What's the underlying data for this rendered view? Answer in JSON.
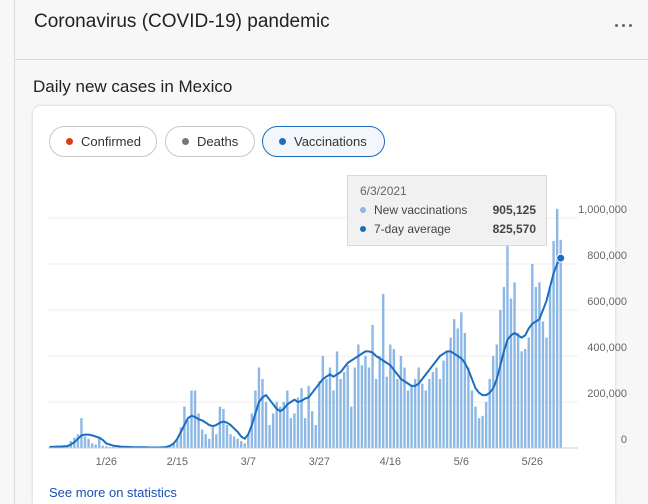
{
  "header": {
    "title": "Coronavirus (COVID-19) pandemic"
  },
  "card": {
    "title": "Daily new cases in Mexico",
    "chips": [
      "Confirmed",
      "Deaths",
      "Vaccinations"
    ],
    "link": "See more on statistics"
  },
  "chart_data": {
    "type": "bar",
    "categories": [
      null,
      null,
      null,
      null,
      null,
      null,
      null,
      null,
      null,
      null,
      null,
      null,
      null,
      null,
      null,
      null,
      "1/26",
      null,
      null,
      null,
      null,
      null,
      null,
      null,
      null,
      null,
      null,
      null,
      null,
      null,
      null,
      null,
      null,
      null,
      null,
      null,
      "2/15",
      null,
      null,
      null,
      null,
      null,
      null,
      null,
      null,
      null,
      null,
      null,
      null,
      null,
      null,
      null,
      null,
      null,
      null,
      null,
      "3/7",
      null,
      null,
      null,
      null,
      null,
      null,
      null,
      null,
      null,
      null,
      null,
      null,
      null,
      null,
      null,
      null,
      null,
      null,
      null,
      "3/27",
      null,
      null,
      null,
      null,
      null,
      null,
      null,
      null,
      null,
      null,
      null,
      null,
      null,
      null,
      null,
      null,
      null,
      null,
      null,
      "4/16",
      null,
      null,
      null,
      null,
      null,
      null,
      null,
      null,
      null,
      null,
      null,
      null,
      null,
      null,
      null,
      null,
      null,
      null,
      null,
      "5/6",
      null,
      null,
      null,
      null,
      null,
      null,
      null,
      null,
      null,
      null,
      null,
      null,
      null,
      null,
      null,
      null,
      null,
      null,
      null,
      "5/26",
      null,
      null,
      null,
      null,
      null,
      null,
      null,
      null
    ],
    "series": [
      {
        "name": "New vaccinations",
        "type": "bar",
        "color": "#8db8e6",
        "values": [
          3000,
          4000,
          5000,
          4000,
          8000,
          10000,
          30000,
          45000,
          60000,
          130000,
          50000,
          40000,
          20000,
          15000,
          45000,
          10000,
          8000,
          5000,
          5000,
          3000,
          2000,
          4000,
          2000,
          1000,
          2000,
          3000,
          1000,
          2000,
          3000,
          2000,
          1000,
          2000,
          3000,
          5000,
          10000,
          20000,
          40000,
          90000,
          180000,
          120000,
          250000,
          250000,
          150000,
          80000,
          60000,
          40000,
          90000,
          60000,
          180000,
          170000,
          100000,
          60000,
          50000,
          40000,
          30000,
          20000,
          60000,
          150000,
          250000,
          350000,
          300000,
          200000,
          100000,
          150000,
          200000,
          180000,
          200000,
          250000,
          130000,
          150000,
          220000,
          260000,
          130000,
          270000,
          160000,
          100000,
          290000,
          400000,
          300000,
          350000,
          250000,
          420000,
          300000,
          330000,
          360000,
          180000,
          350000,
          450000,
          360000,
          400000,
          350000,
          535000,
          300000,
          400000,
          670000,
          310000,
          450000,
          430000,
          300000,
          400000,
          350000,
          250000,
          270000,
          300000,
          350000,
          280000,
          250000,
          300000,
          330000,
          350000,
          300000,
          380000,
          420000,
          480000,
          560000,
          520000,
          590000,
          500000,
          350000,
          250000,
          180000,
          130000,
          140000,
          200000,
          300000,
          400000,
          450000,
          600000,
          700000,
          880000,
          650000,
          720000,
          500000,
          420000,
          430000,
          480000,
          800000,
          700000,
          720000,
          550000,
          480000,
          700000,
          900000,
          1040000,
          905125
        ]
      },
      {
        "name": "7-day average",
        "type": "line",
        "color": "#1a6dbf",
        "values": [
          5000,
          5000,
          6000,
          6000,
          7000,
          8000,
          15000,
          25000,
          40000,
          55000,
          58000,
          58000,
          55000,
          50000,
          45000,
          35000,
          20000,
          15000,
          10000,
          8000,
          6000,
          5000,
          5000,
          4000,
          3000,
          3000,
          3000,
          3000,
          2000,
          2000,
          2000,
          2000,
          3000,
          5000,
          10000,
          20000,
          40000,
          70000,
          100000,
          130000,
          140000,
          135000,
          125000,
          120000,
          110000,
          100000,
          95000,
          100000,
          110000,
          115000,
          110000,
          100000,
          85000,
          70000,
          50000,
          40000,
          60000,
          100000,
          150000,
          200000,
          220000,
          230000,
          210000,
          190000,
          170000,
          160000,
          170000,
          190000,
          200000,
          210000,
          200000,
          205000,
          215000,
          220000,
          240000,
          260000,
          280000,
          300000,
          310000,
          320000,
          310000,
          320000,
          330000,
          350000,
          370000,
          380000,
          390000,
          400000,
          410000,
          420000,
          420000,
          415000,
          400000,
          390000,
          380000,
          370000,
          360000,
          340000,
          320000,
          300000,
          290000,
          280000,
          270000,
          270000,
          280000,
          300000,
          320000,
          340000,
          360000,
          380000,
          400000,
          410000,
          420000,
          420000,
          410000,
          400000,
          390000,
          370000,
          340000,
          300000,
          260000,
          240000,
          230000,
          230000,
          240000,
          260000,
          300000,
          360000,
          420000,
          470000,
          490000,
          500000,
          490000,
          480000,
          490000,
          520000,
          540000,
          550000,
          560000,
          600000,
          640000,
          700000,
          760000,
          800000,
          825570
        ]
      }
    ],
    "ylim": [
      0,
      1150000
    ],
    "yticks": [
      0,
      {
        "value": 200000,
        "label": "200,000"
      },
      {
        "value": 400000,
        "label": "400,000"
      },
      {
        "value": 600000,
        "label": "600,000"
      },
      {
        "value": 800000,
        "label": "800,000"
      },
      {
        "value": 1000000,
        "label": "1,000,000"
      }
    ],
    "grid": true,
    "tooltip": {
      "title": "6/3/2021",
      "values": [
        "905,125",
        "825,570"
      ]
    }
  }
}
